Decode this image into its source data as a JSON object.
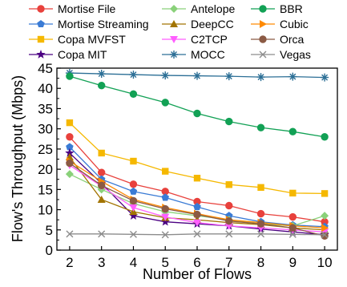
{
  "chart_data": {
    "type": "line",
    "xlabel": "Number of Flows",
    "ylabel": "Flow's Throughput (Mbps)",
    "x": [
      2,
      3,
      4,
      5,
      6,
      7,
      8,
      9,
      10
    ],
    "xlim": [
      1.6,
      10.4
    ],
    "ylim": [
      0,
      45
    ],
    "xticks": [
      "2",
      "3",
      "4",
      "5",
      "6",
      "7",
      "8",
      "9",
      "10"
    ],
    "yticks": [
      "0",
      "5",
      "10",
      "15",
      "20",
      "25",
      "30",
      "35",
      "40",
      "45"
    ],
    "grid": false,
    "legend_position": "top",
    "series": [
      {
        "name": "Mortise File",
        "color": "#e8413c",
        "marker": "circle",
        "values": [
          28,
          19.2,
          16.3,
          14.5,
          12,
          11,
          9,
          8.2,
          7
        ]
      },
      {
        "name": "Mortise Streaming",
        "color": "#3a7bd5",
        "marker": "pentagon",
        "values": [
          25.5,
          17.5,
          14.5,
          13,
          10.7,
          8.5,
          7,
          6.2,
          5.8
        ]
      },
      {
        "name": "Copa MVFST",
        "color": "#f5b800",
        "marker": "square",
        "values": [
          31.5,
          24,
          22,
          19.5,
          17.8,
          16.2,
          15.5,
          14.1,
          14
        ]
      },
      {
        "name": "Copa MIT",
        "color": "#4b0082",
        "marker": "star",
        "values": [
          24,
          16.5,
          8.5,
          7,
          6.5,
          6,
          5.2,
          4.5,
          3.8
        ]
      },
      {
        "name": "Antelope",
        "color": "#8ad17a",
        "marker": "diamond",
        "values": [
          18.8,
          15,
          11.5,
          9.5,
          8.5,
          7.5,
          6.5,
          6,
          8.5
        ]
      },
      {
        "name": "DeepCC",
        "color": "#a27400",
        "marker": "triangle-up",
        "values": [
          23,
          12.5,
          9.5,
          8,
          7.5,
          6.8,
          6.3,
          5.5,
          5
        ]
      },
      {
        "name": "C2TCP",
        "color": "#ff5eff",
        "marker": "triangle-down",
        "values": [
          21,
          15.8,
          10.5,
          8.2,
          6.8,
          6,
          5.5,
          5,
          4.5
        ]
      },
      {
        "name": "MOCC",
        "color": "#2c6f96",
        "marker": "asterisk",
        "values": [
          43.8,
          43.6,
          43.4,
          43.2,
          43.1,
          43,
          42.8,
          42.9,
          42.7
        ]
      },
      {
        "name": "BBR",
        "color": "#12a155",
        "marker": "circle",
        "values": [
          43,
          40.7,
          38.6,
          36.5,
          33.8,
          31.8,
          30.3,
          29.3,
          28
        ]
      },
      {
        "name": "Cubic",
        "color": "#ff8a00",
        "marker": "triangle-right",
        "values": [
          22,
          17,
          12.5,
          10.5,
          9,
          7.5,
          6.8,
          6,
          5.5
        ]
      },
      {
        "name": "Orca",
        "color": "#8b5a44",
        "marker": "circle",
        "values": [
          21.5,
          16,
          12.2,
          10.2,
          8.8,
          7.2,
          6.5,
          5.5,
          3.5
        ]
      },
      {
        "name": "Vegas",
        "color": "#8c8c8c",
        "marker": "x",
        "values": [
          4,
          4,
          3.9,
          3.8,
          4,
          4,
          4,
          3.9,
          3.8
        ]
      }
    ]
  }
}
